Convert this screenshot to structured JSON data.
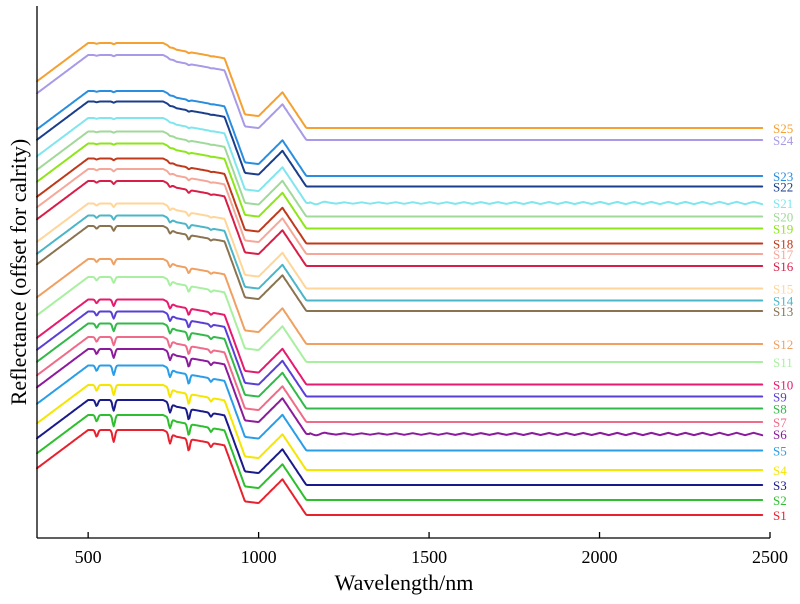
{
  "chart_data": {
    "type": "line",
    "xlabel": "Wavelength/nm",
    "ylabel": "Reflectance (offset for calrity)",
    "xlim": [
      350,
      2500
    ],
    "xticks": [
      500,
      1000,
      1500,
      2000,
      2500
    ],
    "x_tick_labels": [
      "500",
      "1000",
      "1500",
      "2000",
      "2500"
    ],
    "grid": false,
    "legend": "inline labels at right end of each curve",
    "series": [
      {
        "name": "S1",
        "color": "#e8212f",
        "offset": 0
      },
      {
        "name": "S2",
        "color": "#2dbf2d",
        "offset": 1
      },
      {
        "name": "S3",
        "color": "#1a1a8c",
        "offset": 2
      },
      {
        "name": "S4",
        "color": "#f5e600",
        "offset": 3
      },
      {
        "name": "S5",
        "color": "#2a9de8",
        "offset": 4.3
      },
      {
        "name": "S6",
        "color": "#8b1a9c",
        "offset": 5.4
      },
      {
        "name": "S7",
        "color": "#f06b8a",
        "offset": 6.2
      },
      {
        "name": "S8",
        "color": "#33b84a",
        "offset": 7.1
      },
      {
        "name": "S9",
        "color": "#5a3fd6",
        "offset": 7.9
      },
      {
        "name": "S10",
        "color": "#e61a6e",
        "offset": 8.7
      },
      {
        "name": "S11",
        "color": "#a8f0a0",
        "offset": 10.2
      },
      {
        "name": "S12",
        "color": "#f0a060",
        "offset": 11.4
      },
      {
        "name": "S13",
        "color": "#8b7350",
        "offset": 13.6
      },
      {
        "name": "S14",
        "color": "#4ab6c8",
        "offset": 14.3
      },
      {
        "name": "S15",
        "color": "#ffd59a",
        "offset": 15.1
      },
      {
        "name": "S16",
        "color": "#d81e48",
        "offset": 16.6
      },
      {
        "name": "S17",
        "color": "#f5a89a",
        "offset": 17.4
      },
      {
        "name": "S18",
        "color": "#c0391b",
        "offset": 18.1
      },
      {
        "name": "S19",
        "color": "#8ee61a",
        "offset": 19.1
      },
      {
        "name": "S20",
        "color": "#a0d99a",
        "offset": 19.9
      },
      {
        "name": "S21",
        "color": "#80e6ee",
        "offset": 20.8
      },
      {
        "name": "S22",
        "color": "#1a3d8c",
        "offset": 21.9
      },
      {
        "name": "S23",
        "color": "#2a8ee0",
        "offset": 22.6
      },
      {
        "name": "S24",
        "color": "#a89ae6",
        "offset": 25.0
      },
      {
        "name": "S25",
        "color": "#f5a030",
        "offset": 25.8
      }
    ]
  }
}
